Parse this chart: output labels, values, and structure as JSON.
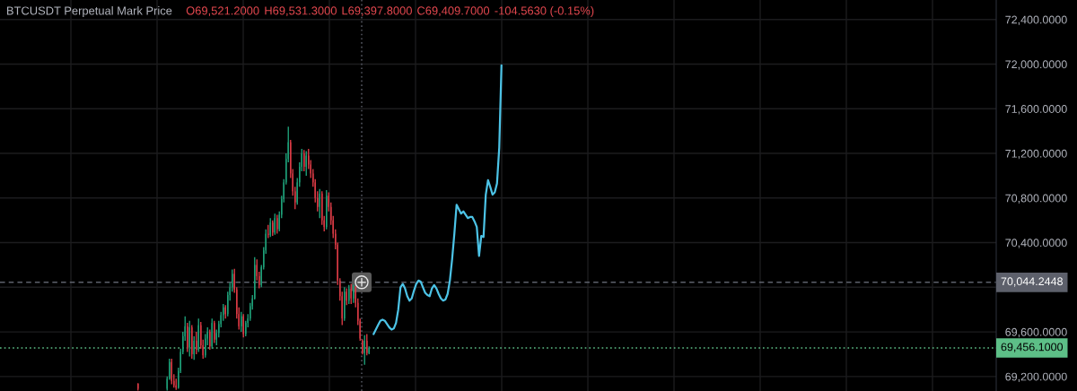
{
  "chart_data": {
    "type": "candlestick",
    "title": "BTCUSDT Perpetual Mark Price",
    "annotations": [
      "O69,521.2000",
      "H69,531.3000",
      "L69,397.8000",
      "C69,409.7000",
      "-104.5630 (-0.15%)"
    ],
    "categories": [
      null,
      null,
      null,
      null,
      null,
      null,
      null,
      null,
      null,
      null,
      null,
      null,
      null,
      null,
      null,
      null,
      null,
      null,
      null,
      null,
      null,
      null,
      null,
      null,
      null,
      null,
      null,
      null,
      null,
      null,
      null,
      null,
      null,
      null,
      null,
      null,
      null,
      null,
      null,
      null,
      null,
      null,
      null,
      null,
      null,
      null,
      null,
      null,
      null,
      null,
      null,
      null,
      null,
      null,
      null,
      null,
      null,
      null,
      null,
      null,
      null,
      null,
      null,
      null,
      null,
      null,
      null,
      null,
      null,
      null,
      null,
      null,
      null,
      null,
      null,
      null,
      null,
      null,
      null,
      null,
      null,
      null,
      null,
      null,
      null,
      null,
      null,
      null,
      null,
      null,
      null,
      null,
      null,
      null,
      null,
      null,
      null,
      null,
      null,
      null,
      null,
      null,
      null,
      null,
      null,
      null,
      null,
      null,
      null,
      null,
      null,
      null,
      null,
      null,
      null,
      null,
      null,
      null,
      null,
      null,
      null,
      null,
      null,
      null,
      null,
      null,
      null,
      null,
      null,
      null,
      null,
      null,
      null,
      null,
      null,
      null,
      null,
      null,
      null,
      null,
      null,
      null,
      null,
      null,
      null,
      null,
      null,
      null,
      null,
      null,
      null,
      null,
      null,
      null,
      null,
      null,
      null,
      null,
      null,
      null,
      null,
      null,
      null,
      null,
      null,
      null,
      null,
      null,
      null,
      null,
      null,
      null,
      null,
      null,
      null,
      null,
      null,
      null,
      null,
      null,
      null,
      null,
      null,
      null,
      null,
      null,
      null,
      null,
      null,
      null,
      null,
      null,
      null,
      null,
      null,
      null,
      null,
      null,
      null,
      null,
      null,
      null,
      null,
      null,
      null,
      null,
      null,
      null,
      null,
      null,
      null,
      null,
      null,
      null,
      null,
      null,
      null,
      null,
      null,
      null,
      null,
      null,
      null,
      null,
      null,
      null,
      null,
      null,
      null,
      null,
      null,
      null,
      null,
      null,
      null,
      null,
      null,
      null,
      null,
      null,
      null,
      null,
      null,
      null,
      null,
      null,
      null,
      null,
      null,
      null,
      null,
      null,
      null,
      null,
      null,
      null,
      null,
      null,
      null,
      null,
      null,
      null,
      null,
      null,
      null,
      null,
      null,
      null,
      null,
      null,
      null,
      null,
      null,
      null,
      null,
      null,
      null,
      null,
      null,
      null,
      null,
      null,
      null,
      null,
      null,
      null,
      null,
      null,
      null,
      null,
      null,
      null,
      null,
      null,
      null,
      null,
      null,
      null,
      null,
      null,
      null,
      null,
      null,
      null,
      null,
      null,
      null,
      null,
      null,
      null,
      null,
      null,
      null,
      null,
      null,
      null,
      null,
      null,
      null,
      null,
      null,
      null,
      null,
      null,
      null,
      null,
      null,
      null,
      null,
      null,
      null,
      null,
      null,
      null,
      null,
      null,
      null,
      null,
      null,
      null,
      null,
      null,
      null,
      null,
      null,
      null,
      null,
      null,
      null,
      null,
      null,
      null,
      null,
      null,
      null,
      null,
      null,
      null,
      null,
      null,
      null,
      null,
      null,
      null,
      null,
      null,
      null,
      null,
      null,
      null,
      null,
      null,
      null,
      null,
      null,
      null,
      null,
      null,
      null,
      null,
      null,
      null,
      null,
      null,
      null,
      null,
      null,
      null,
      null,
      null,
      null,
      null,
      null,
      null,
      null,
      null,
      null,
      null,
      null,
      null,
      null,
      null,
      null,
      null,
      null,
      null,
      null,
      null,
      null,
      null,
      null,
      null,
      null,
      null,
      null,
      null,
      null,
      null,
      null,
      null,
      null,
      null,
      null,
      null,
      null,
      null,
      null,
      null,
      null,
      null,
      null,
      null,
      null,
      null,
      null,
      null,
      null,
      null,
      null,
      null,
      null,
      null,
      null,
      null
    ],
    "ohlc": [
      null,
      null,
      null,
      null,
      null,
      null,
      null,
      null,
      null,
      null,
      null,
      null,
      null,
      null,
      null,
      null,
      null,
      null,
      null,
      null,
      null,
      null,
      null,
      null,
      null,
      null,
      null,
      null,
      null,
      null,
      null,
      null,
      null,
      null,
      null,
      null,
      null,
      null,
      null,
      null,
      null,
      null,
      null,
      null,
      null,
      null,
      null,
      null,
      null,
      null,
      null,
      null,
      null,
      null,
      null,
      null,
      null,
      null,
      null,
      null,
      null,
      [
        69135,
        69140,
        69075,
        69090
      ],
      null,
      null,
      null,
      null,
      null,
      null,
      null,
      null,
      null,
      null,
      null,
      null,
      [
        69090,
        69200,
        69075,
        69180
      ],
      [
        69180,
        69360,
        69170,
        69330
      ],
      [
        69330,
        69360,
        69130,
        69160
      ],
      [
        69160,
        69220,
        69100,
        69120
      ],
      [
        69120,
        69180,
        69080,
        69100
      ],
      [
        69100,
        69280,
        69090,
        69250
      ],
      [
        69250,
        69450,
        69230,
        69420
      ],
      [
        69420,
        69600,
        69400,
        69560
      ],
      [
        69560,
        69740,
        69520,
        69650
      ],
      [
        69650,
        69680,
        69420,
        69460
      ],
      [
        69460,
        69700,
        69380,
        69640
      ],
      [
        69640,
        69660,
        69360,
        69400
      ],
      [
        69400,
        69560,
        69350,
        69520
      ],
      [
        69520,
        69600,
        69400,
        69440
      ],
      [
        69440,
        69720,
        69420,
        69660
      ],
      [
        69660,
        69690,
        69450,
        69480
      ],
      [
        69480,
        69530,
        69360,
        69390
      ],
      [
        69390,
        69580,
        69370,
        69540
      ],
      [
        69540,
        69640,
        69480,
        69600
      ],
      [
        69600,
        69620,
        69440,
        69470
      ],
      [
        69470,
        69720,
        69450,
        69680
      ],
      [
        69680,
        69700,
        69500,
        69530
      ],
      [
        69530,
        69620,
        69480,
        69590
      ],
      [
        69590,
        69700,
        69550,
        69670
      ],
      [
        69670,
        69780,
        69640,
        69750
      ],
      [
        69750,
        69850,
        69700,
        69820
      ],
      [
        69820,
        69840,
        69720,
        69760
      ],
      [
        69760,
        69960,
        69740,
        69930
      ],
      [
        69930,
        70040,
        69880,
        70000
      ],
      [
        70000,
        70160,
        69960,
        70120
      ],
      [
        70120,
        70165,
        69950,
        69980
      ],
      [
        69980,
        70000,
        69720,
        69760
      ],
      [
        69760,
        69820,
        69620,
        69650
      ],
      [
        69650,
        69780,
        69600,
        69740
      ],
      [
        69740,
        69760,
        69550,
        69580
      ],
      [
        69580,
        69700,
        69560,
        69680
      ],
      [
        69680,
        69760,
        69640,
        69720
      ],
      [
        69720,
        69860,
        69700,
        69830
      ],
      [
        69830,
        69930,
        69800,
        69900
      ],
      [
        69900,
        70270,
        69890,
        70200
      ],
      [
        70200,
        70250,
        70060,
        70100
      ],
      [
        70100,
        70140,
        69990,
        70020
      ],
      [
        70020,
        70200,
        70000,
        70180
      ],
      [
        70180,
        70360,
        70160,
        70330
      ],
      [
        70330,
        70520,
        70300,
        70480
      ],
      [
        70480,
        70560,
        70440,
        70470
      ],
      [
        70470,
        70620,
        70450,
        70580
      ],
      [
        70580,
        70600,
        70460,
        70490
      ],
      [
        70490,
        70660,
        70470,
        70620
      ],
      [
        70620,
        70650,
        70480,
        70520
      ],
      [
        70520,
        70680,
        70500,
        70650
      ],
      [
        70650,
        70820,
        70620,
        70790
      ],
      [
        70790,
        70970,
        70760,
        70940
      ],
      [
        70940,
        71200,
        70920,
        71150
      ],
      [
        71150,
        71440,
        71120,
        71300
      ],
      [
        71300,
        71320,
        70980,
        71020
      ],
      [
        71020,
        71060,
        70820,
        70860
      ],
      [
        70860,
        70900,
        70700,
        70760
      ],
      [
        70760,
        70980,
        70740,
        70940
      ],
      [
        70940,
        71120,
        70900,
        71080
      ],
      [
        71080,
        71240,
        71040,
        71200
      ],
      [
        71200,
        71230,
        71040,
        71080
      ],
      [
        71080,
        71220,
        71000,
        71180
      ],
      [
        71180,
        71240,
        71060,
        71100
      ],
      [
        71100,
        71140,
        70980,
        71020
      ],
      [
        71020,
        71060,
        70900,
        70940
      ],
      [
        70940,
        70970,
        70760,
        70800
      ],
      [
        70800,
        70860,
        70680,
        70720
      ],
      [
        70720,
        70880,
        70620,
        70840
      ],
      [
        70840,
        70860,
        70560,
        70600
      ],
      [
        70600,
        70640,
        70500,
        70540
      ],
      [
        70540,
        70870,
        70520,
        70820
      ],
      [
        70820,
        70850,
        70680,
        70720
      ],
      [
        70720,
        70760,
        70560,
        70600
      ],
      [
        70600,
        70640,
        70440,
        70480
      ],
      [
        70480,
        70520,
        70340,
        70380
      ],
      [
        70380,
        70400,
        70020,
        70060
      ],
      [
        70060,
        70080,
        69880,
        69920
      ],
      [
        69920,
        69960,
        69660,
        69720
      ],
      [
        69720,
        70000,
        69700,
        69960
      ],
      [
        69960,
        69990,
        69840,
        69880
      ],
      [
        69880,
        70020,
        69850,
        69990
      ],
      [
        69990,
        70030,
        69850,
        69900
      ],
      [
        69900,
        70020,
        69860,
        69980
      ],
      [
        69980,
        70010,
        69820,
        69860
      ],
      [
        69860,
        69900,
        69660,
        69700
      ],
      [
        69700,
        69720,
        69520,
        69540
      ],
      [
        69521.2,
        69531.3,
        69397.8,
        69409.7
      ],
      [
        69410,
        69570,
        69305,
        69520
      ],
      [
        69520,
        69580,
        69390,
        69410
      ],
      [
        69410,
        69470,
        69400,
        69456.1
      ],
      null,
      null,
      null,
      null,
      null,
      null,
      null,
      null,
      null,
      null,
      null,
      null,
      null,
      null,
      null,
      null,
      null,
      null,
      null,
      null,
      null,
      null,
      null,
      null,
      null,
      null,
      null,
      null,
      null,
      null,
      null,
      null,
      null,
      null,
      null,
      null,
      null,
      null,
      null,
      null,
      null,
      null,
      null,
      null,
      null,
      null,
      null,
      null,
      null,
      null,
      null,
      null,
      null,
      null,
      null,
      null,
      null,
      null,
      null,
      null,
      null,
      null,
      null,
      null,
      null,
      null,
      null,
      null,
      null,
      null,
      null,
      null,
      null,
      null,
      null,
      null,
      null,
      null,
      null,
      null,
      null,
      null,
      null,
      null,
      null,
      null,
      null,
      null,
      null,
      null,
      null,
      null,
      null,
      null,
      null,
      null,
      null,
      null,
      null,
      null,
      null,
      null,
      null,
      null,
      null,
      null,
      null,
      null,
      null,
      null,
      null,
      null,
      null,
      null,
      null,
      null,
      null,
      null,
      null,
      null,
      null,
      null,
      null,
      null,
      null,
      null,
      null,
      null,
      null,
      null,
      null,
      null,
      null,
      null,
      null,
      null,
      null,
      null,
      null,
      null,
      null,
      null,
      null,
      null,
      null,
      null,
      null,
      null,
      null,
      null,
      null,
      null,
      null,
      null,
      null,
      null,
      null,
      null,
      null,
      null,
      null,
      null,
      null,
      null,
      null,
      null,
      null,
      null,
      null,
      null,
      null,
      null,
      null,
      null,
      null,
      null,
      null,
      null,
      null,
      null,
      null,
      null,
      null,
      null,
      null,
      null,
      null,
      null,
      null,
      null,
      null,
      null,
      null,
      null,
      null,
      null,
      null,
      null,
      null,
      null,
      null,
      null,
      null,
      null,
      null,
      null,
      null,
      null,
      null,
      null,
      null,
      null,
      null,
      null,
      null,
      null,
      null,
      null,
      null,
      null,
      null,
      null,
      null,
      null,
      null,
      null,
      null,
      null,
      null,
      null,
      null,
      null,
      null,
      null,
      null,
      null,
      null,
      null,
      null,
      null,
      null,
      null,
      null,
      null,
      null,
      null,
      null,
      null,
      null,
      null,
      null,
      null,
      null,
      null,
      null,
      null,
      null,
      null,
      null,
      null,
      null,
      null,
      null,
      null,
      null,
      null,
      null,
      null,
      null,
      null,
      null,
      null,
      null,
      null,
      null,
      null,
      null,
      null,
      null
    ],
    "colors": [
      null,
      null,
      null,
      null,
      null,
      null,
      null,
      null,
      null,
      null,
      null,
      null,
      null,
      null,
      null,
      null,
      null,
      null,
      null,
      null,
      null,
      null,
      null,
      null,
      null,
      null,
      null,
      null,
      null,
      null,
      null,
      null,
      null,
      null,
      null,
      null,
      null,
      null,
      null,
      null,
      null,
      null,
      null,
      null,
      null,
      null,
      null,
      null,
      null,
      null,
      null,
      null,
      null,
      null,
      null,
      null,
      null,
      null,
      null,
      null,
      null,
      "#d83a44",
      null,
      null,
      null,
      null,
      null,
      null,
      null,
      null,
      null,
      null,
      null,
      null,
      "#1e9e77",
      "#1e9e77",
      "#d83a44",
      "#d83a44",
      "#d83a44",
      "#1e9e77",
      "#1e9e77",
      "#1e9e77",
      "#1e9e77",
      "#d83a44",
      "#1e9e77",
      "#d83a44",
      "#1e9e77",
      "#d83a44",
      "#1e9e77",
      "#d83a44",
      "#d83a44",
      "#1e9e77",
      "#1e9e77",
      "#d83a44",
      "#1e9e77",
      "#d83a44",
      "#1e9e77",
      "#1e9e77",
      "#1e9e77",
      "#1e9e77",
      "#d83a44",
      "#1e9e77",
      "#1e9e77",
      "#1e9e77",
      "#d83a44",
      "#d83a44",
      "#d83a44",
      "#1e9e77",
      "#d83a44",
      "#1e9e77",
      "#1e9e77",
      "#1e9e77",
      "#1e9e77",
      "#1e9e77",
      "#d83a44",
      "#d83a44",
      "#1e9e77",
      "#1e9e77",
      "#1e9e77",
      "#d83a44",
      "#1e9e77",
      "#d83a44",
      "#1e9e77",
      "#d83a44",
      "#1e9e77",
      "#1e9e77",
      "#1e9e77",
      "#1e9e77",
      "#1e9e77",
      "#d83a44",
      "#d83a44",
      "#d83a44",
      "#1e9e77",
      "#1e9e77",
      "#1e9e77",
      "#d83a44",
      "#1e9e77",
      "#d83a44",
      "#d83a44",
      "#d83a44",
      "#d83a44",
      "#d83a44",
      "#1e9e77",
      "#d83a44",
      "#d83a44",
      "#1e9e77",
      "#d83a44",
      "#d83a44",
      "#d83a44",
      "#d83a44",
      "#d83a44",
      "#d83a44",
      "#d83a44",
      "#1e9e77",
      "#d83a44",
      "#1e9e77",
      "#d83a44",
      "#1e9e77",
      "#d83a44",
      "#d83a44",
      "#d83a44",
      "#d83a44",
      "#1e9e77",
      "#d83a44",
      "#1e9e77",
      null,
      null,
      null,
      null,
      null,
      null,
      null,
      null,
      null,
      null,
      null,
      null,
      null,
      null,
      null,
      null,
      null,
      null,
      null,
      null,
      null,
      null,
      null,
      null,
      null,
      null,
      null,
      null,
      null,
      null,
      null,
      null,
      null,
      null,
      null,
      null,
      null,
      null,
      null,
      null,
      null,
      null,
      null,
      null,
      null,
      null,
      null,
      null,
      null,
      null,
      null,
      null,
      null,
      null,
      null,
      null,
      null,
      null,
      null,
      null,
      null,
      null,
      null,
      null,
      null,
      null,
      null,
      null,
      null,
      null,
      null,
      null,
      null,
      null,
      null,
      null,
      null,
      null,
      null,
      null,
      null,
      null,
      null,
      null,
      null,
      null,
      null,
      null,
      null,
      null,
      null,
      null,
      null,
      null,
      null,
      null,
      null,
      null,
      null,
      null,
      null,
      null,
      null,
      null,
      null,
      null,
      null,
      null,
      null,
      null,
      null,
      null,
      null,
      null,
      null,
      null,
      null,
      null,
      null,
      null,
      null,
      null,
      null,
      null,
      null,
      null,
      null,
      null,
      null,
      null,
      null,
      null,
      null,
      null,
      null,
      null,
      null,
      null,
      null,
      null,
      null,
      null,
      null,
      null,
      null,
      null,
      null,
      null,
      null,
      null,
      null,
      null,
      null,
      null,
      null,
      null,
      null,
      null,
      null,
      null,
      null,
      null,
      null,
      null,
      null,
      null,
      null,
      null,
      null,
      null,
      null,
      null,
      null,
      null,
      null,
      null,
      null,
      null,
      null,
      null,
      null,
      null,
      null,
      null,
      null,
      null,
      null,
      null,
      null,
      null,
      null,
      null,
      null,
      null,
      null,
      null,
      null,
      null,
      null,
      null,
      null,
      null,
      null,
      null,
      null,
      null,
      null,
      null,
      null,
      null,
      null,
      null,
      null,
      null,
      null,
      null,
      null,
      null,
      null,
      null,
      null,
      null,
      null,
      null,
      null,
      null,
      null,
      null,
      null,
      null,
      null,
      null,
      null,
      null,
      null,
      null,
      null,
      null,
      null,
      null,
      null,
      null,
      null,
      null,
      null,
      null,
      null,
      null,
      null,
      null,
      null,
      null,
      null,
      null,
      null,
      null,
      null,
      null,
      null,
      null,
      null,
      null,
      null,
      null,
      null,
      null,
      null,
      null,
      null,
      null,
      null,
      null,
      null,
      null,
      null,
      null,
      null,
      null,
      null
    ],
    "series": [
      {
        "type": "line",
        "color": "#4cc3e6",
        "values": [
          null,
          null,
          null,
          null,
          null,
          null,
          null,
          null,
          null,
          null,
          null,
          null,
          null,
          null,
          null,
          null,
          null,
          null,
          null,
          null,
          null,
          null,
          null,
          null,
          null,
          null,
          null,
          null,
          null,
          null,
          null,
          null,
          null,
          null,
          null,
          null,
          null,
          null,
          null,
          null,
          null,
          null,
          null,
          null,
          null,
          null,
          null,
          null,
          null,
          null,
          null,
          null,
          null,
          null,
          null,
          null,
          null,
          null,
          null,
          null,
          null,
          null,
          null,
          null,
          null,
          null,
          null,
          null,
          null,
          null,
          null,
          null,
          null,
          null,
          null,
          null,
          null,
          null,
          null,
          null,
          null,
          null,
          null,
          null,
          null,
          null,
          null,
          null,
          null,
          null,
          null,
          null,
          null,
          null,
          null,
          null,
          null,
          null,
          null,
          null,
          null,
          null,
          null,
          null,
          null,
          null,
          null,
          null,
          null,
          null,
          null,
          null,
          null,
          null,
          null,
          null,
          null,
          null,
          null,
          null,
          null,
          null,
          null,
          null,
          null,
          null,
          null,
          null,
          null,
          null,
          null,
          null,
          null,
          null,
          null,
          null,
          null,
          null,
          null,
          null,
          null,
          null,
          null,
          null,
          null,
          null,
          null,
          null,
          null,
          null,
          null,
          null,
          null,
          null,
          null,
          null,
          null,
          null,
          null,
          null,
          null,
          null,
          null,
          null,
          null,
          null,
          69580,
          69620,
          69660,
          69700,
          69710,
          69700,
          69670,
          69640,
          69620,
          69630,
          69680,
          69800,
          70000,
          70030,
          69990,
          69920,
          69880,
          69900,
          69970,
          70030,
          70060,
          70050,
          70000,
          69950,
          69930,
          69920,
          69990,
          70020,
          69990,
          69940,
          69900,
          69880,
          69890,
          69940,
          70060,
          70250,
          70480,
          70740,
          70700,
          70660,
          70680,
          70650,
          70620,
          70630,
          70630,
          70590,
          70540,
          70280,
          70460,
          70450,
          70830,
          70960,
          70900,
          70830,
          70850,
          70930,
          71250,
          71990,
          null,
          null,
          null,
          null,
          null,
          null,
          null,
          null,
          null,
          null,
          null,
          null,
          null,
          null,
          null,
          null,
          null,
          null,
          null,
          null,
          null,
          null,
          null,
          null,
          null,
          null,
          null,
          null,
          null,
          null,
          null,
          null,
          null,
          null,
          null,
          null,
          null,
          null,
          null,
          null,
          null,
          null,
          null,
          null,
          null,
          null,
          null,
          null,
          null,
          null,
          null,
          null,
          null,
          null,
          null,
          null,
          null,
          null,
          null,
          null,
          null,
          null,
          null,
          null,
          null,
          null,
          null,
          null,
          null,
          null,
          null,
          null,
          null,
          null,
          null,
          null,
          null,
          null,
          null,
          null,
          null,
          null,
          null,
          null,
          null,
          null,
          null,
          null,
          null,
          null,
          null,
          null,
          null,
          null,
          null,
          null,
          null,
          null,
          null,
          null,
          null,
          null,
          null,
          null,
          null,
          null,
          null,
          null,
          null,
          null,
          null,
          null,
          null,
          null,
          null,
          null,
          null,
          null,
          null,
          null,
          null,
          null,
          null,
          null,
          null,
          null,
          null,
          null,
          null,
          null,
          null,
          null,
          null,
          null,
          null,
          null,
          null,
          null,
          null,
          null,
          null,
          null,
          null,
          null,
          null,
          null,
          null,
          null,
          null,
          null,
          null,
          null,
          null,
          null,
          null,
          null,
          null,
          null,
          null,
          null,
          null,
          null,
          null,
          null,
          null,
          null,
          null,
          null,
          null,
          null,
          null,
          null,
          null,
          null,
          null,
          null,
          null,
          null,
          null,
          null,
          null,
          null,
          null,
          null,
          null,
          null,
          null,
          null,
          null,
          null,
          null,
          null,
          null,
          null,
          null,
          null,
          null,
          null,
          null,
          null,
          null,
          null,
          null,
          null,
          null,
          null,
          null,
          null,
          null,
          null,
          null,
          null,
          null,
          null,
          null,
          null,
          null,
          null,
          null,
          null
        ]
      }
    ],
    "ylim": [
      69070,
      72575
    ],
    "yticks": [
      {
        "value": 69200,
        "label": "69,200.0000"
      },
      {
        "value": 69600,
        "label": "69,600.0000"
      },
      {
        "value": 70000,
        "label": null
      },
      {
        "value": 70400,
        "label": "70,400.0000"
      },
      {
        "value": 70800,
        "label": "70,800.0000"
      },
      {
        "value": 71200,
        "label": "71,200.0000"
      },
      {
        "value": 71600,
        "label": "71,600.0000"
      },
      {
        "value": 72000,
        "label": "72,000.0000"
      },
      {
        "value": 72400,
        "label": "72,400.0000"
      }
    ],
    "grid": true,
    "tick_labels": "y",
    "ref_lines": [
      {
        "axis": "y",
        "value": 70044.2448,
        "label": "70,044.2448",
        "line_style": "dashed",
        "color": "#5d606b"
      },
      {
        "axis": "y",
        "value": 69456.1,
        "label": "69,456.1000",
        "line_style": "dotted",
        "color": "#5dbf87"
      }
    ]
  }
}
